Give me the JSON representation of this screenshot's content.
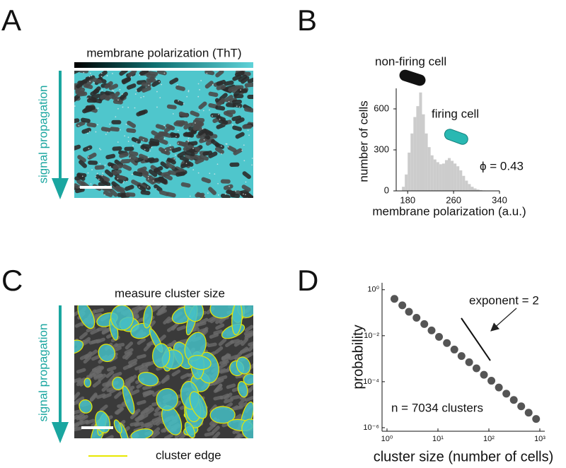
{
  "panels": {
    "A": {
      "letter": "A",
      "colorbar_label": "membrane polarization (ThT)",
      "arrow_label": "signal propagation"
    },
    "B": {
      "letter": "B"
    },
    "C": {
      "letter": "C",
      "title": "measure cluster size",
      "arrow_label": "signal propagation",
      "legend": "cluster edge"
    },
    "D": {
      "letter": "D"
    }
  },
  "chart_data": [
    {
      "type": "histogram",
      "xlabel": "membrane polarization (a.u.)",
      "ylabel": "number of cells",
      "bins": [
        170,
        175,
        180,
        185,
        190,
        195,
        200,
        205,
        210,
        215,
        220,
        225,
        230,
        235,
        240,
        245,
        250,
        255,
        260,
        265,
        270,
        275,
        280,
        285,
        290,
        295,
        300,
        305,
        310,
        315
      ],
      "counts": [
        30,
        120,
        280,
        420,
        540,
        620,
        720,
        560,
        420,
        320,
        260,
        230,
        210,
        195,
        200,
        225,
        240,
        220,
        200,
        180,
        150,
        110,
        75,
        50,
        30,
        18,
        10,
        6,
        3
      ],
      "color": "#cccccc",
      "xlim": [
        160,
        340
      ],
      "ylim": [
        0,
        750
      ],
      "xticks": [
        180,
        260,
        340
      ],
      "yticks": [
        0,
        300,
        600
      ],
      "annotations": [
        "non-firing cell",
        "firing cell",
        "ϕ = 0.43"
      ]
    },
    {
      "type": "scatter",
      "xlabel": "cluster size (number of cells)",
      "ylabel": "probability",
      "x": [
        1.4,
        2.0,
        2.7,
        3.8,
        5.4,
        7.5,
        10.5,
        15,
        21,
        29,
        41,
        57,
        80,
        112,
        157,
        220,
        308,
        431,
        603,
        845
      ],
      "values": [
        0.4,
        0.21,
        0.11,
        0.06,
        0.032,
        0.017,
        0.0089,
        0.0048,
        0.0025,
        0.0013,
        0.0007,
        0.00038,
        0.0002,
        0.00011,
        5.6e-05,
        3e-05,
        1.6e-05,
        8.5e-06,
        4.5e-06,
        2.4e-06
      ],
      "color": "#555555",
      "xlog": true,
      "ylog": true,
      "xlim": [
        0.8,
        1250
      ],
      "ylim": [
        7e-07,
        2
      ],
      "xticks": [
        {
          "value": 1,
          "label": "10⁰"
        },
        {
          "value": 10,
          "label": "10¹"
        },
        {
          "value": 100,
          "label": "10²"
        },
        {
          "value": 1000,
          "label": "10³"
        }
      ],
      "yticks": [
        {
          "value": 1,
          "label": "10⁰"
        },
        {
          "value": 0.01,
          "label": "10⁻²"
        },
        {
          "value": 0.0001,
          "label": "10⁻⁴"
        },
        {
          "value": 1e-06,
          "label": "10⁻⁶"
        }
      ],
      "annotations": [
        "exponent = 2",
        "n = 7034  clusters"
      ]
    }
  ]
}
